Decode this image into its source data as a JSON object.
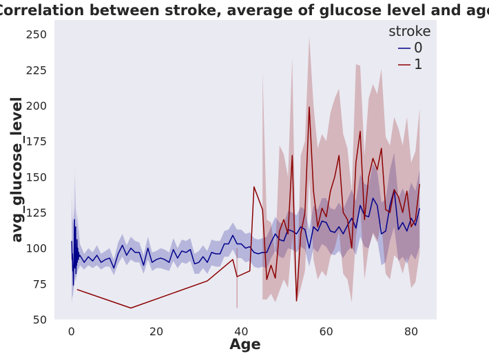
{
  "chart_data": {
    "type": "line",
    "title": "Correlation between stroke, average of glucose level and age",
    "xlabel": "Age",
    "ylabel": "avg_glucose_level",
    "xlim": [
      -4,
      86
    ],
    "ylim": [
      50,
      260
    ],
    "xticks": [
      0,
      20,
      40,
      60,
      80
    ],
    "yticks": [
      50,
      75,
      100,
      125,
      150,
      175,
      200,
      225,
      250
    ],
    "grid": false,
    "background": "#eaeaf2",
    "legend": {
      "title": "stroke",
      "placement": "top-right"
    },
    "series": [
      {
        "name": "0",
        "color": "#00008b",
        "band_color": "#00008b",
        "x": [
          0.08,
          0.16,
          0.24,
          0.32,
          0.4,
          0.48,
          0.56,
          0.64,
          0.72,
          0.8,
          0.88,
          1.0,
          1.08,
          1.16,
          1.24,
          1.32,
          1.4,
          1.48,
          1.56,
          1.64,
          1.72,
          1.8,
          2,
          3,
          4,
          5,
          6,
          7,
          8,
          9,
          10,
          11,
          12,
          13,
          14,
          15,
          16,
          17,
          18,
          19,
          20,
          21,
          22,
          23,
          24,
          25,
          26,
          27,
          28,
          29,
          30,
          31,
          32,
          33,
          34,
          35,
          36,
          37,
          38,
          39,
          40,
          41,
          42,
          43,
          44,
          45,
          46,
          47,
          48,
          49,
          50,
          51,
          52,
          53,
          54,
          55,
          56,
          57,
          58,
          59,
          60,
          61,
          62,
          63,
          64,
          65,
          66,
          67,
          68,
          69,
          70,
          71,
          72,
          73,
          74,
          75,
          76,
          77,
          78,
          79,
          80,
          81,
          82
        ],
        "y": [
          105,
          92,
          96,
          84,
          88,
          74,
          90,
          98,
          120,
          86,
          95,
          115,
          82,
          95,
          88,
          106,
          90,
          100,
          96,
          92,
          97,
          94,
          95,
          90,
          94,
          91,
          95,
          90,
          92,
          93,
          86,
          96,
          102,
          95,
          100,
          97,
          97,
          88,
          100,
          90,
          92,
          93,
          92,
          90,
          99,
          93,
          98,
          97,
          99,
          89,
          90,
          94,
          90,
          97,
          96,
          96,
          103,
          103,
          109,
          103,
          103,
          100,
          101,
          97,
          96,
          97,
          97,
          104,
          110,
          106,
          105,
          113,
          112,
          110,
          115,
          113,
          100,
          115,
          112,
          119,
          118,
          112,
          111,
          115,
          110,
          116,
          121,
          114,
          130,
          123,
          122,
          135,
          130,
          110,
          112,
          130,
          141,
          113,
          118,
          112,
          121,
          116,
          128
        ],
        "lower": [
          62,
          64,
          66,
          66,
          68,
          70,
          72,
          74,
          76,
          78,
          78,
          80,
          76,
          80,
          80,
          84,
          82,
          84,
          86,
          84,
          86,
          86,
          88,
          85,
          88,
          86,
          88,
          85,
          87,
          87,
          81,
          89,
          94,
          88,
          92,
          90,
          90,
          82,
          92,
          84,
          86,
          86,
          85,
          84,
          91,
          86,
          90,
          89,
          91,
          82,
          82,
          86,
          82,
          88,
          87,
          87,
          94,
          94,
          99,
          93,
          93,
          90,
          91,
          87,
          86,
          87,
          86,
          93,
          98,
          94,
          93,
          100,
          99,
          97,
          101,
          99,
          87,
          100,
          97,
          103,
          101,
          96,
          95,
          98,
          93,
          98,
          101,
          95,
          108,
          101,
          100,
          111,
          106,
          88,
          90,
          105,
          115,
          91,
          94,
          89,
          96,
          92,
          101
        ],
        "upper": [
          140,
          128,
          124,
          118,
          122,
          116,
          124,
          130,
          158,
          124,
          128,
          150,
          110,
          128,
          118,
          128,
          112,
          124,
          118,
          112,
          114,
          110,
          103,
          96,
          100,
          97,
          102,
          96,
          98,
          100,
          92,
          104,
          110,
          102,
          108,
          105,
          104,
          95,
          108,
          97,
          98,
          100,
          99,
          97,
          107,
          100,
          106,
          105,
          107,
          96,
          98,
          102,
          98,
          106,
          105,
          105,
          112,
          113,
          118,
          113,
          113,
          110,
          111,
          107,
          106,
          107,
          108,
          115,
          122,
          118,
          117,
          126,
          125,
          123,
          129,
          127,
          113,
          130,
          127,
          135,
          135,
          128,
          127,
          132,
          127,
          134,
          141,
          133,
          152,
          145,
          144,
          159,
          154,
          132,
          134,
          155,
          167,
          135,
          142,
          135,
          146,
          140,
          155
        ]
      },
      {
        "name": "1",
        "color": "#8b0000",
        "band_color": "#8b0000",
        "x": [
          1.32,
          14,
          32,
          38,
          39,
          42,
          43,
          45,
          46,
          47,
          48,
          49,
          50,
          51,
          52,
          53,
          54,
          55,
          56,
          57,
          58,
          59,
          60,
          61,
          62,
          63,
          64,
          65,
          66,
          67,
          68,
          69,
          70,
          71,
          72,
          73,
          74,
          75,
          76,
          77,
          78,
          79,
          80,
          81,
          82
        ],
        "y": [
          71,
          58,
          77,
          92,
          80,
          84,
          143,
          127,
          78,
          88,
          79,
          112,
          120,
          110,
          165,
          63,
          110,
          125,
          199,
          140,
          115,
          128,
          122,
          140,
          150,
          165,
          125,
          120,
          100,
          160,
          182,
          120,
          150,
          163,
          155,
          170,
          127,
          125,
          141,
          136,
          125,
          140,
          115,
          120,
          145
        ],
        "lower": [
          null,
          null,
          null,
          null,
          58,
          null,
          null,
          64,
          64,
          68,
          62,
          70,
          78,
          72,
          108,
          62,
          72,
          84,
          150,
          92,
          78,
          84,
          80,
          94,
          100,
          112,
          82,
          78,
          62,
          108,
          130,
          78,
          100,
          110,
          104,
          118,
          82,
          78,
          95,
          92,
          82,
          94,
          72,
          76,
          96
        ],
        "upper": [
          null,
          null,
          null,
          null,
          100,
          null,
          null,
          224,
          120,
          118,
          95,
          172,
          166,
          150,
          234,
          64,
          165,
          175,
          249,
          200,
          170,
          180,
          175,
          195,
          205,
          212,
          180,
          170,
          140,
          229,
          228,
          165,
          205,
          215,
          208,
          226,
          178,
          172,
          192,
          184,
          172,
          192,
          160,
          168,
          198
        ]
      }
    ]
  }
}
